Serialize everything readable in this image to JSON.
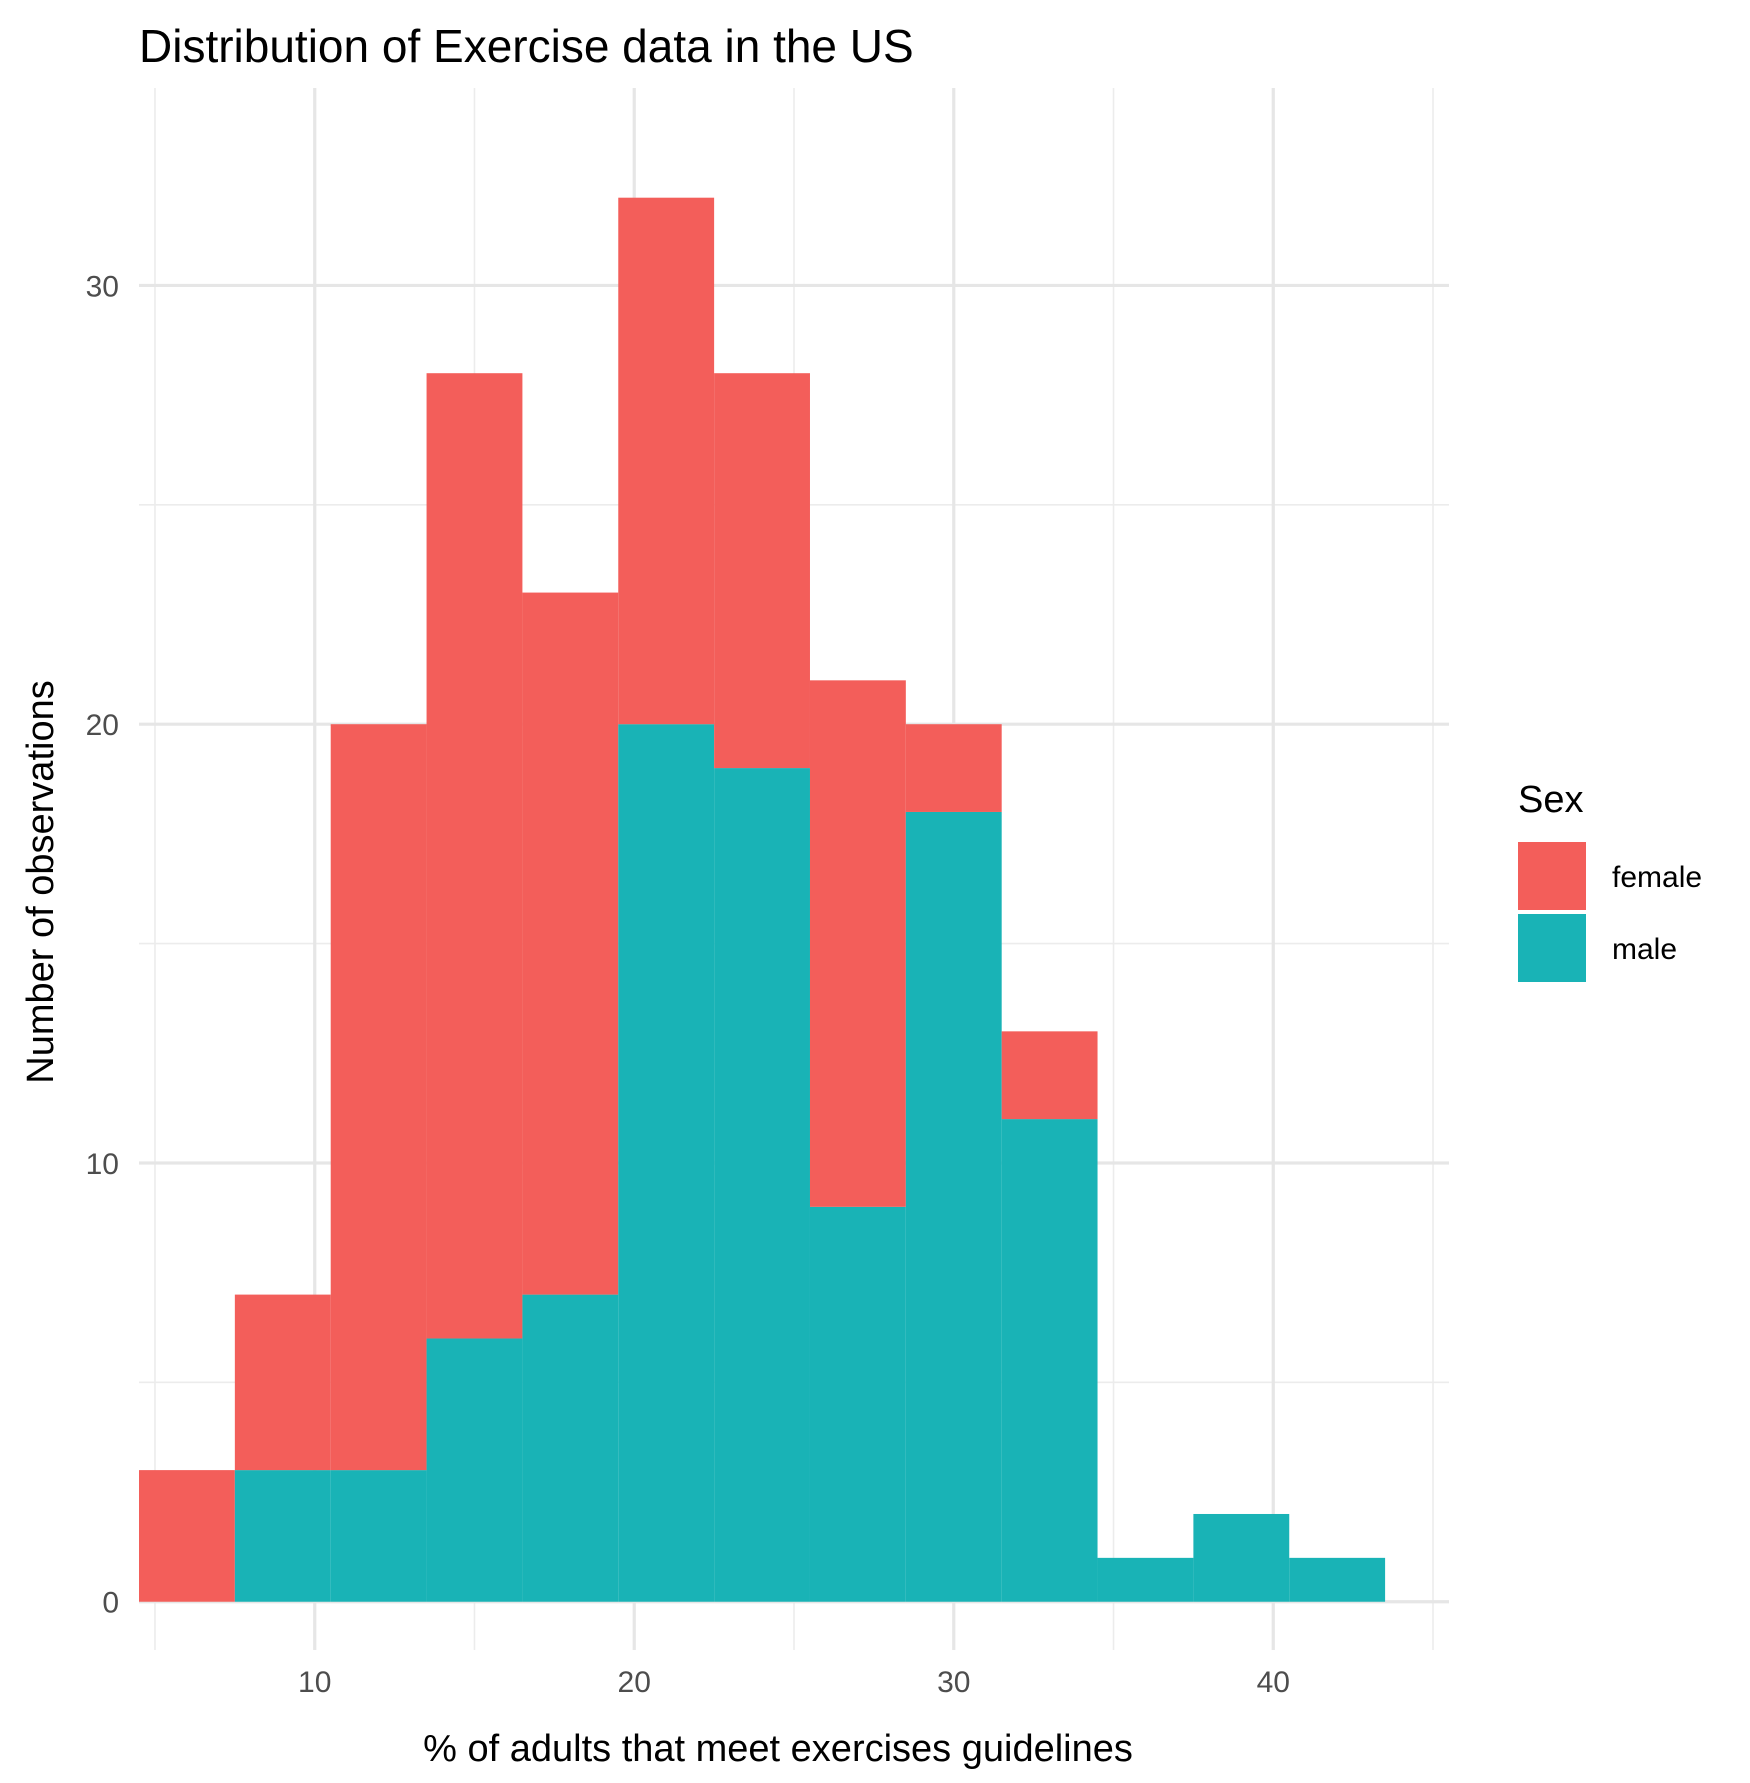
{
  "chart_data": {
    "type": "bar",
    "subtype": "stacked-histogram",
    "title": "Distribution of Exercise data in the US",
    "xlabel": "% of adults that meet exercises guidelines",
    "ylabel": "Number of observations",
    "xlim": [
      4.5,
      45.5
    ],
    "ylim": [
      -1.1,
      34.5
    ],
    "x_ticks": [
      10,
      20,
      30,
      40
    ],
    "y_ticks": [
      0,
      10,
      20,
      30
    ],
    "x_minor_ticks": [
      5,
      15,
      25,
      35,
      45
    ],
    "y_minor_ticks": [
      5,
      15,
      25
    ],
    "grid": true,
    "bin_width": 3,
    "bins": [
      [
        4.5,
        7.5
      ],
      [
        7.5,
        10.5
      ],
      [
        10.5,
        13.5
      ],
      [
        13.5,
        16.5
      ],
      [
        16.5,
        19.5
      ],
      [
        19.5,
        22.5
      ],
      [
        22.5,
        25.5
      ],
      [
        25.5,
        28.5
      ],
      [
        28.5,
        31.5
      ],
      [
        31.5,
        34.5
      ],
      [
        34.5,
        37.5
      ],
      [
        37.5,
        40.5
      ],
      [
        40.5,
        43.5
      ]
    ],
    "series": [
      {
        "name": "female",
        "color": "#F35E5A",
        "values": [
          3,
          4,
          17,
          22,
          16,
          12,
          9,
          12,
          2,
          2,
          0,
          0,
          0
        ]
      },
      {
        "name": "male",
        "color": "#19B3B6",
        "values": [
          0,
          3,
          3,
          6,
          7,
          20,
          19,
          9,
          18,
          11,
          1,
          2,
          1
        ]
      }
    ],
    "stacked": true,
    "legend": {
      "title": "Sex",
      "position": "right",
      "entries": [
        "female",
        "male"
      ]
    }
  }
}
